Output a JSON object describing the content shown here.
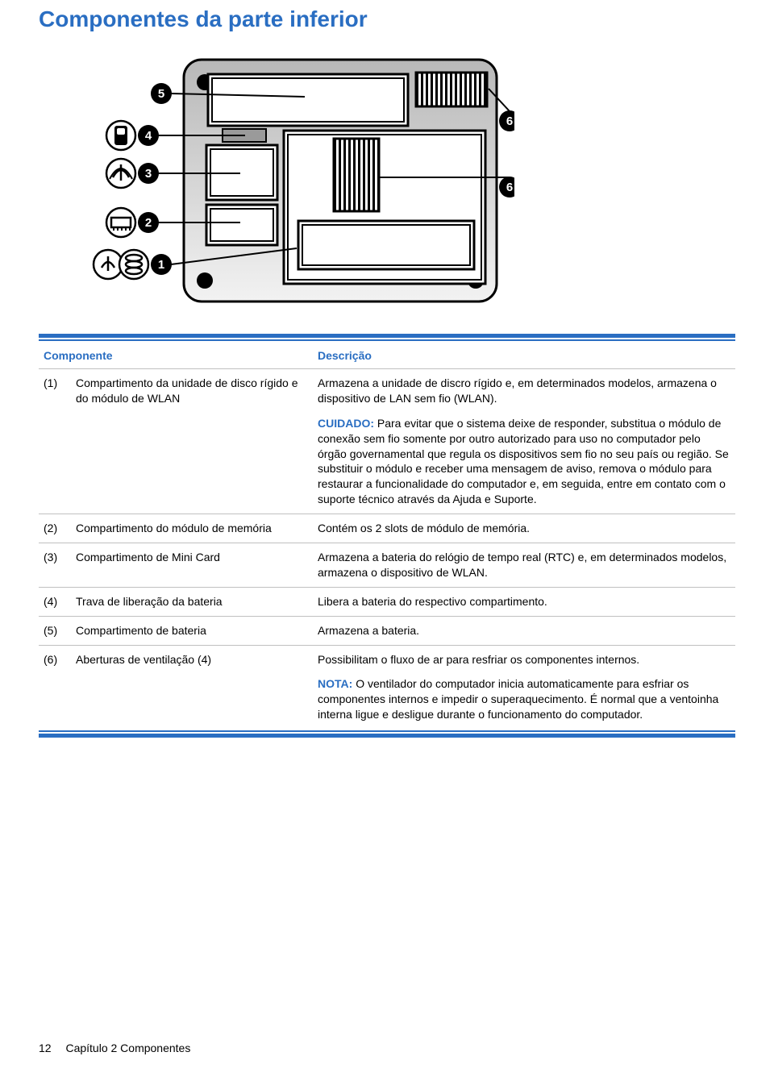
{
  "title": "Componentes da parte inferior",
  "table": {
    "header_component": "Componente",
    "header_description": "Descrição"
  },
  "rows": [
    {
      "num": "(1)",
      "component": "Compartimento da unidade de disco rígido e do módulo de WLAN",
      "descriptions": [
        {
          "text": "Armazena a unidade de discro rígido e, em determinados modelos, armazena o dispositivo de LAN sem fio (WLAN)."
        },
        {
          "cue": "CUIDADO:",
          "text": " Para evitar que o sistema deixe de responder, substitua o módulo de conexão sem fio somente por outro autorizado para uso no computador pelo órgão governamental que regula os dispositivos sem fio no seu país ou região. Se substituir o módulo e receber uma mensagem de aviso, remova o módulo para restaurar a funcionalidade do computador e, em seguida, entre em contato com o suporte técnico através da Ajuda e Suporte."
        }
      ]
    },
    {
      "num": "(2)",
      "component": "Compartimento do módulo de memória",
      "descriptions": [
        {
          "text": "Contém os 2 slots de módulo de memória."
        }
      ]
    },
    {
      "num": "(3)",
      "component": "Compartimento de Mini Card",
      "descriptions": [
        {
          "text": "Armazena a bateria do relógio de tempo real (RTC) e, em determinados modelos, armazena o dispositivo de WLAN."
        }
      ]
    },
    {
      "num": "(4)",
      "component": "Trava de liberação da bateria",
      "descriptions": [
        {
          "text": "Libera a bateria do respectivo compartimento."
        }
      ]
    },
    {
      "num": "(5)",
      "component": "Compartimento de bateria",
      "descriptions": [
        {
          "text": "Armazena a bateria."
        }
      ]
    },
    {
      "num": "(6)",
      "component": "Aberturas de ventilação (4)",
      "descriptions": [
        {
          "text": "Possibilitam o fluxo de ar para resfriar os componentes internos."
        },
        {
          "cue": "NOTA:",
          "text": " O ventilador do computador inicia automaticamente para esfriar os componentes internos e impedir o superaquecimento. É normal que a ventoinha interna ligue e desligue durante o funcionamento do computador."
        }
      ]
    }
  ],
  "diagram": {
    "labels": {
      "1": "1",
      "2": "2",
      "3": "3",
      "4": "4",
      "5": "5",
      "6": "6"
    }
  },
  "footer": {
    "page_number": "12",
    "chapter": "Capítulo 2   Componentes"
  },
  "colors": {
    "accent": "#2a6ec2",
    "black": "#000000",
    "hair": "#c0c0c0",
    "diagram_fill": "#d0d0d0",
    "diagram_grad_top": "#b8b8b8",
    "diagram_grad_bot": "#f2f2f2"
  }
}
